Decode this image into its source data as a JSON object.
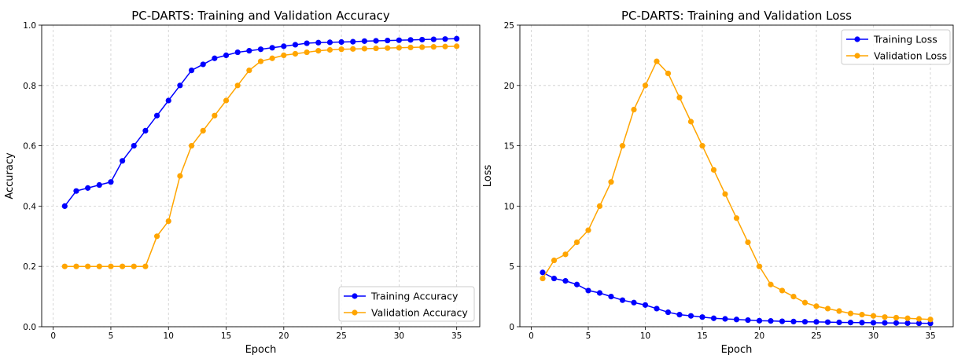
{
  "chart_data": [
    {
      "type": "line",
      "title": "PC-DARTS: Training and Validation Accuracy",
      "xlabel": "Epoch",
      "ylabel": "Accuracy",
      "xlim": [
        -1,
        37
      ],
      "ylim": [
        0.0,
        1.0
      ],
      "xticks": [
        0,
        5,
        10,
        15,
        20,
        25,
        30,
        35
      ],
      "yticks": [
        0.0,
        0.2,
        0.4,
        0.6,
        0.8,
        1.0
      ],
      "ytick_labels": [
        "0.0",
        "0.2",
        "0.4",
        "0.6",
        "0.8",
        "1.0"
      ],
      "grid": true,
      "legend_position": "lower-right",
      "x": [
        1,
        2,
        3,
        4,
        5,
        6,
        7,
        8,
        9,
        10,
        11,
        12,
        13,
        14,
        15,
        16,
        17,
        18,
        19,
        20,
        21,
        22,
        23,
        24,
        25,
        26,
        27,
        28,
        29,
        30,
        31,
        32,
        33,
        34,
        35
      ],
      "series": [
        {
          "name": "Training Accuracy",
          "color": "#0000ff",
          "values": [
            0.4,
            0.45,
            0.46,
            0.47,
            0.48,
            0.55,
            0.6,
            0.65,
            0.7,
            0.75,
            0.8,
            0.85,
            0.87,
            0.89,
            0.9,
            0.91,
            0.915,
            0.92,
            0.925,
            0.93,
            0.935,
            0.94,
            0.942,
            0.943,
            0.944,
            0.945,
            0.947,
            0.948,
            0.949,
            0.95,
            0.951,
            0.952,
            0.953,
            0.954,
            0.955
          ]
        },
        {
          "name": "Validation Accuracy",
          "color": "#ffa500",
          "values": [
            0.2,
            0.2,
            0.2,
            0.2,
            0.2,
            0.2,
            0.2,
            0.2,
            0.3,
            0.35,
            0.5,
            0.6,
            0.65,
            0.7,
            0.75,
            0.8,
            0.85,
            0.88,
            0.89,
            0.9,
            0.905,
            0.91,
            0.915,
            0.918,
            0.92,
            0.921,
            0.922,
            0.923,
            0.924,
            0.925,
            0.926,
            0.927,
            0.928,
            0.929,
            0.93
          ]
        }
      ]
    },
    {
      "type": "line",
      "title": "PC-DARTS: Training and Validation Loss",
      "xlabel": "Epoch",
      "ylabel": "Loss",
      "xlim": [
        -1,
        37
      ],
      "ylim": [
        0,
        25
      ],
      "xticks": [
        0,
        5,
        10,
        15,
        20,
        25,
        30,
        35
      ],
      "yticks": [
        0,
        5,
        10,
        15,
        20,
        25
      ],
      "ytick_labels": [
        "0",
        "5",
        "10",
        "15",
        "20",
        "25"
      ],
      "grid": true,
      "legend_position": "upper-right",
      "x": [
        1,
        2,
        3,
        4,
        5,
        6,
        7,
        8,
        9,
        10,
        11,
        12,
        13,
        14,
        15,
        16,
        17,
        18,
        19,
        20,
        21,
        22,
        23,
        24,
        25,
        26,
        27,
        28,
        29,
        30,
        31,
        32,
        33,
        34,
        35
      ],
      "series": [
        {
          "name": "Training Loss",
          "color": "#0000ff",
          "values": [
            4.5,
            4.0,
            3.8,
            3.5,
            3.0,
            2.8,
            2.5,
            2.2,
            2.0,
            1.8,
            1.5,
            1.2,
            1.0,
            0.9,
            0.8,
            0.7,
            0.65,
            0.6,
            0.55,
            0.5,
            0.48,
            0.45,
            0.43,
            0.41,
            0.4,
            0.38,
            0.36,
            0.35,
            0.34,
            0.33,
            0.32,
            0.31,
            0.3,
            0.29,
            0.28
          ]
        },
        {
          "name": "Validation Loss",
          "color": "#ffa500",
          "values": [
            4.0,
            5.5,
            6.0,
            7.0,
            8.0,
            10.0,
            12.0,
            15.0,
            18.0,
            20.0,
            22.0,
            21.0,
            19.0,
            17.0,
            15.0,
            13.0,
            11.0,
            9.0,
            7.0,
            5.0,
            3.5,
            3.0,
            2.5,
            2.0,
            1.7,
            1.5,
            1.3,
            1.1,
            1.0,
            0.9,
            0.8,
            0.75,
            0.7,
            0.65,
            0.6
          ]
        }
      ]
    }
  ]
}
